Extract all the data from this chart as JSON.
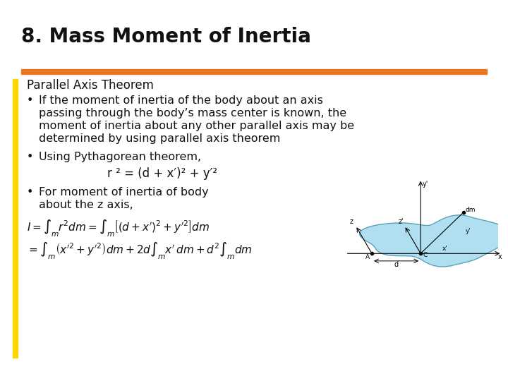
{
  "title": "8. Mass Moment of Inertia",
  "title_fontsize": 20,
  "title_color": "#111111",
  "accent_bar_color_orange": "#E87722",
  "left_stripe_color": "#FFD700",
  "bg_color": "#FFFFFF",
  "section_title": "Parallel Axis Theorem",
  "bullet1_line1": "If the moment of inertia of the body about an axis",
  "bullet1_line2": "passing through the body’s mass center is known, the",
  "bullet1_line3": "moment of inertia about any other parallel axis may be",
  "bullet1_line4": "determined by using parallel axis theorem",
  "bullet2_line1": "Using Pythagorean theorem,",
  "bullet2_eq": "r ² = (d + x′)² + y′²",
  "bullet3_line1": "For moment of inertia of body",
  "bullet3_line2": "about the z axis,",
  "formula1": "$I = \\int_m r^2 dm = \\int_m \\left[(d + x^{\\prime})^2 + y^{\\prime 2}\\right] dm$",
  "formula2": "$= \\int_m \\left(x^{\\prime 2}+y^{\\prime 2}\\right)dm + 2d\\int_m x^{\\prime}\\, dm + d^2\\int_m dm$",
  "text_fontsize": 11.5,
  "eq_fontsize": 12,
  "formula_fontsize": 11,
  "section_title_fontsize": 12
}
